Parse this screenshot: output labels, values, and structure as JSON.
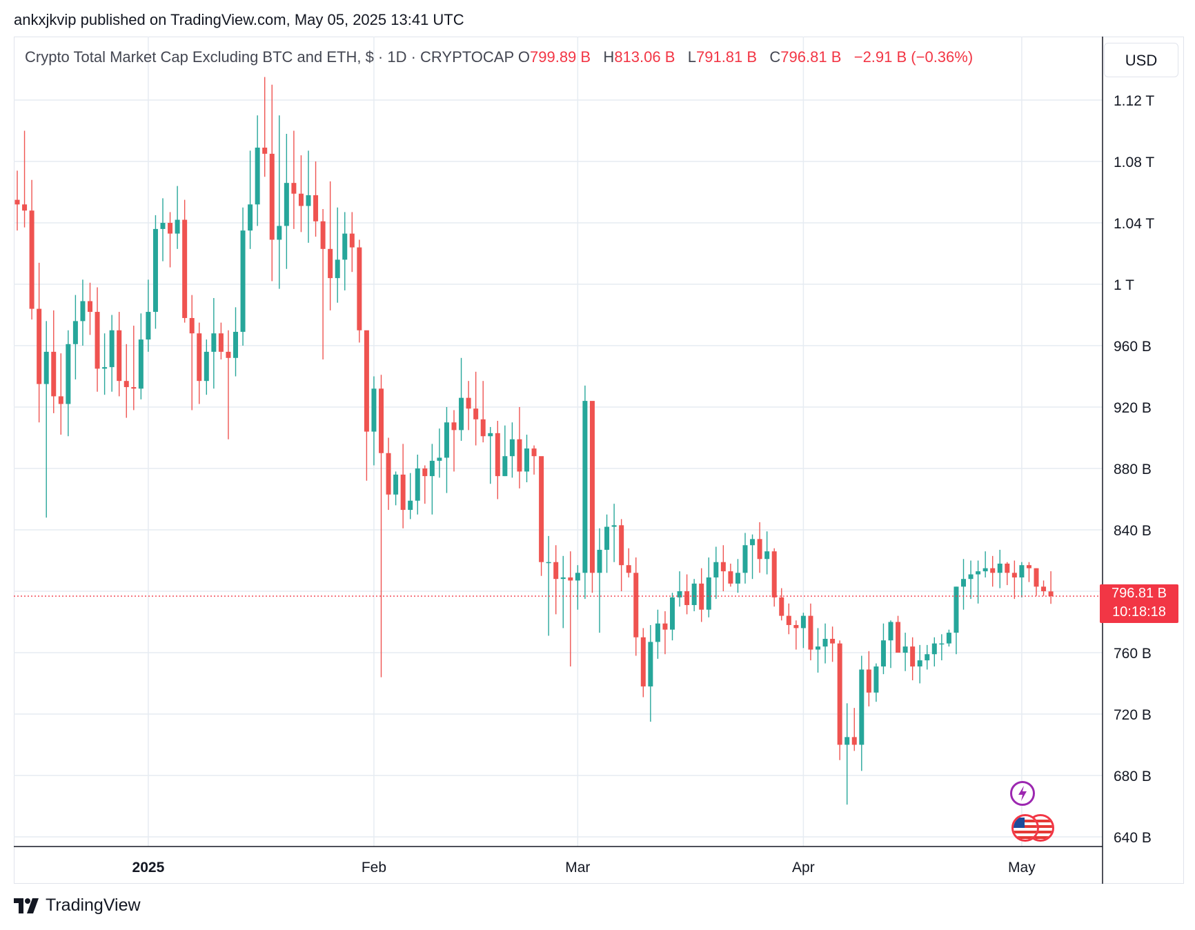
{
  "header": {
    "published_line": "ankxjkvip published on TradingView.com, May 05, 2025 13:41 UTC"
  },
  "legend": {
    "symbol": "Crypto Total Market Cap Excluding BTC and ETH, $ · 1D · CRYPTOCAP",
    "o_label": "O",
    "o_value": "799.89 B",
    "h_label": "H",
    "h_value": "813.06 B",
    "l_label": "L",
    "l_value": "791.81 B",
    "c_label": "C",
    "c_value": "796.81 B",
    "change": "−2.91 B (−0.36%)"
  },
  "controls": {
    "currency": "USD"
  },
  "price_tag": {
    "price": "796.81 B",
    "countdown": "10:18:18"
  },
  "footer": {
    "brand": "TradingView"
  },
  "colors": {
    "up": "#26a69a",
    "down": "#ef5350",
    "grid": "#e6ecf2",
    "price_line": "#f23645",
    "text": "#131722",
    "axis": "#131722"
  },
  "chart_data": {
    "type": "candlestick",
    "title": "Crypto Total Market Cap Excluding BTC and ETH, $ · 1D · CRYPTOCAP",
    "y_unit": "USD (billions)",
    "ylim": [
      635,
      1130
    ],
    "y_ticks": [
      640,
      680,
      720,
      760,
      800,
      840,
      880,
      920,
      960,
      1000,
      1040,
      1080,
      1120
    ],
    "y_tick_labels": [
      "640 B",
      "680 B",
      "720 B",
      "760 B",
      "",
      "840 B",
      "880 B",
      "920 B",
      "960 B",
      "1 T",
      "1.04 T",
      "1.08 T",
      "1.12 T"
    ],
    "x_labels": [
      {
        "label": "2025",
        "date": "2025-01-01",
        "bold": true
      },
      {
        "label": "Feb",
        "date": "2025-02-01"
      },
      {
        "label": "Mar",
        "date": "2025-03-01"
      },
      {
        "label": "Apr",
        "date": "2025-04-01"
      },
      {
        "label": "May",
        "date": "2025-05-01"
      }
    ],
    "x_range": [
      "2024-12-14",
      "2025-05-20"
    ],
    "last_price": 796.81,
    "grid": true,
    "candles": [
      {
        "d": "2024-12-14",
        "o": 1055,
        "h": 1074,
        "l": 1035,
        "c": 1052
      },
      {
        "d": "2024-12-15",
        "o": 1052,
        "h": 1100,
        "l": 1037,
        "c": 1048
      },
      {
        "d": "2024-12-16",
        "o": 1048,
        "h": 1068,
        "l": 977,
        "c": 984
      },
      {
        "d": "2024-12-17",
        "o": 984,
        "h": 1014,
        "l": 910,
        "c": 935
      },
      {
        "d": "2024-12-18",
        "o": 935,
        "h": 976,
        "l": 848,
        "c": 956
      },
      {
        "d": "2024-12-19",
        "o": 956,
        "h": 983,
        "l": 916,
        "c": 927
      },
      {
        "d": "2024-12-20",
        "o": 927,
        "h": 955,
        "l": 902,
        "c": 922
      },
      {
        "d": "2024-12-21",
        "o": 922,
        "h": 970,
        "l": 901,
        "c": 961
      },
      {
        "d": "2024-12-22",
        "o": 961,
        "h": 993,
        "l": 938,
        "c": 976
      },
      {
        "d": "2024-12-23",
        "o": 976,
        "h": 1003,
        "l": 960,
        "c": 989
      },
      {
        "d": "2024-12-24",
        "o": 989,
        "h": 1001,
        "l": 967,
        "c": 982
      },
      {
        "d": "2024-12-25",
        "o": 982,
        "h": 998,
        "l": 930,
        "c": 945
      },
      {
        "d": "2024-12-26",
        "o": 945,
        "h": 968,
        "l": 928,
        "c": 946
      },
      {
        "d": "2024-12-27",
        "o": 946,
        "h": 980,
        "l": 930,
        "c": 970
      },
      {
        "d": "2024-12-28",
        "o": 970,
        "h": 982,
        "l": 927,
        "c": 937
      },
      {
        "d": "2024-12-29",
        "o": 937,
        "h": 961,
        "l": 913,
        "c": 933
      },
      {
        "d": "2024-12-30",
        "o": 933,
        "h": 973,
        "l": 918,
        "c": 932
      },
      {
        "d": "2024-12-31",
        "o": 932,
        "h": 981,
        "l": 925,
        "c": 964
      },
      {
        "d": "2025-01-01",
        "o": 964,
        "h": 1003,
        "l": 956,
        "c": 982
      },
      {
        "d": "2025-01-02",
        "o": 982,
        "h": 1045,
        "l": 971,
        "c": 1036
      },
      {
        "d": "2025-01-03",
        "o": 1036,
        "h": 1056,
        "l": 1015,
        "c": 1040
      },
      {
        "d": "2025-01-04",
        "o": 1040,
        "h": 1047,
        "l": 1011,
        "c": 1033
      },
      {
        "d": "2025-01-05",
        "o": 1033,
        "h": 1064,
        "l": 1023,
        "c": 1042
      },
      {
        "d": "2025-01-06",
        "o": 1042,
        "h": 1055,
        "l": 975,
        "c": 978
      },
      {
        "d": "2025-01-07",
        "o": 978,
        "h": 993,
        "l": 918,
        "c": 968
      },
      {
        "d": "2025-01-08",
        "o": 968,
        "h": 975,
        "l": 922,
        "c": 937
      },
      {
        "d": "2025-01-09",
        "o": 937,
        "h": 964,
        "l": 928,
        "c": 956
      },
      {
        "d": "2025-01-10",
        "o": 956,
        "h": 991,
        "l": 932,
        "c": 968
      },
      {
        "d": "2025-01-11",
        "o": 968,
        "h": 975,
        "l": 951,
        "c": 956
      },
      {
        "d": "2025-01-12",
        "o": 956,
        "h": 970,
        "l": 899,
        "c": 952
      },
      {
        "d": "2025-01-13",
        "o": 952,
        "h": 985,
        "l": 940,
        "c": 969
      },
      {
        "d": "2025-01-14",
        "o": 969,
        "h": 1050,
        "l": 960,
        "c": 1035
      },
      {
        "d": "2025-01-15",
        "o": 1035,
        "h": 1087,
        "l": 1023,
        "c": 1052
      },
      {
        "d": "2025-01-16",
        "o": 1052,
        "h": 1110,
        "l": 1038,
        "c": 1089
      },
      {
        "d": "2025-01-17",
        "o": 1089,
        "h": 1135,
        "l": 1070,
        "c": 1085
      },
      {
        "d": "2025-01-18",
        "o": 1085,
        "h": 1130,
        "l": 1002,
        "c": 1029
      },
      {
        "d": "2025-01-19",
        "o": 1029,
        "h": 1110,
        "l": 997,
        "c": 1038
      },
      {
        "d": "2025-01-20",
        "o": 1038,
        "h": 1098,
        "l": 1010,
        "c": 1066
      },
      {
        "d": "2025-01-21",
        "o": 1066,
        "h": 1100,
        "l": 1036,
        "c": 1059
      },
      {
        "d": "2025-01-22",
        "o": 1059,
        "h": 1084,
        "l": 1034,
        "c": 1051
      },
      {
        "d": "2025-01-23",
        "o": 1051,
        "h": 1087,
        "l": 1027,
        "c": 1058
      },
      {
        "d": "2025-01-24",
        "o": 1058,
        "h": 1080,
        "l": 1031,
        "c": 1041
      },
      {
        "d": "2025-01-25",
        "o": 1041,
        "h": 1049,
        "l": 951,
        "c": 1023
      },
      {
        "d": "2025-01-26",
        "o": 1023,
        "h": 1067,
        "l": 983,
        "c": 1004
      },
      {
        "d": "2025-01-27",
        "o": 1004,
        "h": 1050,
        "l": 988,
        "c": 1016
      },
      {
        "d": "2025-01-28",
        "o": 1016,
        "h": 1047,
        "l": 996,
        "c": 1033
      },
      {
        "d": "2025-01-29",
        "o": 1033,
        "h": 1047,
        "l": 1008,
        "c": 1024
      },
      {
        "d": "2025-01-30",
        "o": 1024,
        "h": 1029,
        "l": 962,
        "c": 970
      },
      {
        "d": "2025-01-31",
        "o": 970,
        "h": 969,
        "l": 872,
        "c": 904
      },
      {
        "d": "2025-02-01",
        "o": 904,
        "h": 940,
        "l": 882,
        "c": 932
      },
      {
        "d": "2025-02-02",
        "o": 932,
        "h": 941,
        "l": 744,
        "c": 890
      },
      {
        "d": "2025-02-03",
        "o": 890,
        "h": 900,
        "l": 853,
        "c": 863
      },
      {
        "d": "2025-02-04",
        "o": 863,
        "h": 878,
        "l": 856,
        "c": 876
      },
      {
        "d": "2025-02-05",
        "o": 876,
        "h": 896,
        "l": 841,
        "c": 853
      },
      {
        "d": "2025-02-06",
        "o": 853,
        "h": 877,
        "l": 847,
        "c": 859
      },
      {
        "d": "2025-02-07",
        "o": 859,
        "h": 889,
        "l": 850,
        "c": 880
      },
      {
        "d": "2025-02-08",
        "o": 880,
        "h": 882,
        "l": 857,
        "c": 875
      },
      {
        "d": "2025-02-09",
        "o": 875,
        "h": 896,
        "l": 850,
        "c": 885
      },
      {
        "d": "2025-02-10",
        "o": 885,
        "h": 906,
        "l": 874,
        "c": 887
      },
      {
        "d": "2025-02-11",
        "o": 887,
        "h": 920,
        "l": 864,
        "c": 910
      },
      {
        "d": "2025-02-12",
        "o": 910,
        "h": 918,
        "l": 878,
        "c": 905
      },
      {
        "d": "2025-02-13",
        "o": 905,
        "h": 952,
        "l": 898,
        "c": 926
      },
      {
        "d": "2025-02-14",
        "o": 926,
        "h": 937,
        "l": 905,
        "c": 919
      },
      {
        "d": "2025-02-15",
        "o": 919,
        "h": 943,
        "l": 895,
        "c": 912
      },
      {
        "d": "2025-02-16",
        "o": 912,
        "h": 937,
        "l": 897,
        "c": 901
      },
      {
        "d": "2025-02-17",
        "o": 901,
        "h": 907,
        "l": 870,
        "c": 903
      },
      {
        "d": "2025-02-18",
        "o": 903,
        "h": 911,
        "l": 860,
        "c": 875
      },
      {
        "d": "2025-02-19",
        "o": 875,
        "h": 908,
        "l": 875,
        "c": 888
      },
      {
        "d": "2025-02-20",
        "o": 888,
        "h": 910,
        "l": 874,
        "c": 899
      },
      {
        "d": "2025-02-21",
        "o": 899,
        "h": 920,
        "l": 867,
        "c": 878
      },
      {
        "d": "2025-02-22",
        "o": 878,
        "h": 902,
        "l": 871,
        "c": 893
      },
      {
        "d": "2025-02-23",
        "o": 893,
        "h": 895,
        "l": 876,
        "c": 888
      },
      {
        "d": "2025-02-24",
        "o": 888,
        "h": 887,
        "l": 810,
        "c": 819
      },
      {
        "d": "2025-02-25",
        "o": 819,
        "h": 836,
        "l": 771,
        "c": 819
      },
      {
        "d": "2025-02-26",
        "o": 819,
        "h": 830,
        "l": 785,
        "c": 808
      },
      {
        "d": "2025-02-27",
        "o": 808,
        "h": 823,
        "l": 776,
        "c": 809
      },
      {
        "d": "2025-02-28",
        "o": 809,
        "h": 826,
        "l": 751,
        "c": 807
      },
      {
        "d": "2025-03-01",
        "o": 807,
        "h": 817,
        "l": 788,
        "c": 812
      },
      {
        "d": "2025-03-02",
        "o": 812,
        "h": 934,
        "l": 795,
        "c": 924
      },
      {
        "d": "2025-03-03",
        "o": 924,
        "h": 922,
        "l": 799,
        "c": 812
      },
      {
        "d": "2025-03-04",
        "o": 812,
        "h": 841,
        "l": 773,
        "c": 827
      },
      {
        "d": "2025-03-05",
        "o": 827,
        "h": 850,
        "l": 812,
        "c": 842
      },
      {
        "d": "2025-03-06",
        "o": 842,
        "h": 857,
        "l": 819,
        "c": 843
      },
      {
        "d": "2025-03-07",
        "o": 843,
        "h": 847,
        "l": 800,
        "c": 817
      },
      {
        "d": "2025-03-08",
        "o": 817,
        "h": 828,
        "l": 809,
        "c": 812
      },
      {
        "d": "2025-03-09",
        "o": 812,
        "h": 822,
        "l": 758,
        "c": 770
      },
      {
        "d": "2025-03-10",
        "o": 770,
        "h": 776,
        "l": 731,
        "c": 738
      },
      {
        "d": "2025-03-11",
        "o": 738,
        "h": 778,
        "l": 715,
        "c": 767
      },
      {
        "d": "2025-03-12",
        "o": 767,
        "h": 788,
        "l": 756,
        "c": 779
      },
      {
        "d": "2025-03-13",
        "o": 779,
        "h": 787,
        "l": 759,
        "c": 775
      },
      {
        "d": "2025-03-14",
        "o": 775,
        "h": 799,
        "l": 768,
        "c": 796
      },
      {
        "d": "2025-03-15",
        "o": 796,
        "h": 813,
        "l": 790,
        "c": 800
      },
      {
        "d": "2025-03-16",
        "o": 800,
        "h": 811,
        "l": 785,
        "c": 791
      },
      {
        "d": "2025-03-17",
        "o": 791,
        "h": 808,
        "l": 787,
        "c": 805
      },
      {
        "d": "2025-03-18",
        "o": 805,
        "h": 815,
        "l": 780,
        "c": 788
      },
      {
        "d": "2025-03-19",
        "o": 788,
        "h": 822,
        "l": 783,
        "c": 809
      },
      {
        "d": "2025-03-20",
        "o": 809,
        "h": 829,
        "l": 795,
        "c": 819
      },
      {
        "d": "2025-03-21",
        "o": 819,
        "h": 830,
        "l": 800,
        "c": 813
      },
      {
        "d": "2025-03-22",
        "o": 813,
        "h": 818,
        "l": 803,
        "c": 805
      },
      {
        "d": "2025-03-23",
        "o": 805,
        "h": 821,
        "l": 799,
        "c": 812
      },
      {
        "d": "2025-03-24",
        "o": 812,
        "h": 838,
        "l": 805,
        "c": 830
      },
      {
        "d": "2025-03-25",
        "o": 830,
        "h": 837,
        "l": 808,
        "c": 834
      },
      {
        "d": "2025-03-26",
        "o": 834,
        "h": 845,
        "l": 812,
        "c": 821
      },
      {
        "d": "2025-03-27",
        "o": 821,
        "h": 839,
        "l": 811,
        "c": 826
      },
      {
        "d": "2025-03-28",
        "o": 826,
        "h": 828,
        "l": 790,
        "c": 796
      },
      {
        "d": "2025-03-29",
        "o": 796,
        "h": 802,
        "l": 781,
        "c": 784
      },
      {
        "d": "2025-03-30",
        "o": 784,
        "h": 792,
        "l": 772,
        "c": 778
      },
      {
        "d": "2025-03-31",
        "o": 778,
        "h": 781,
        "l": 762,
        "c": 776
      },
      {
        "d": "2025-04-01",
        "o": 776,
        "h": 786,
        "l": 763,
        "c": 784
      },
      {
        "d": "2025-04-02",
        "o": 784,
        "h": 792,
        "l": 755,
        "c": 762
      },
      {
        "d": "2025-04-03",
        "o": 762,
        "h": 776,
        "l": 747,
        "c": 764
      },
      {
        "d": "2025-04-04",
        "o": 764,
        "h": 779,
        "l": 753,
        "c": 769
      },
      {
        "d": "2025-04-05",
        "o": 769,
        "h": 777,
        "l": 754,
        "c": 766
      },
      {
        "d": "2025-04-06",
        "o": 766,
        "h": 768,
        "l": 690,
        "c": 700
      },
      {
        "d": "2025-04-07",
        "o": 700,
        "h": 727,
        "l": 661,
        "c": 705
      },
      {
        "d": "2025-04-08",
        "o": 705,
        "h": 724,
        "l": 696,
        "c": 700
      },
      {
        "d": "2025-04-09",
        "o": 700,
        "h": 758,
        "l": 683,
        "c": 749
      },
      {
        "d": "2025-04-10",
        "o": 749,
        "h": 761,
        "l": 725,
        "c": 734
      },
      {
        "d": "2025-04-11",
        "o": 734,
        "h": 753,
        "l": 728,
        "c": 751
      },
      {
        "d": "2025-04-12",
        "o": 751,
        "h": 779,
        "l": 746,
        "c": 768
      },
      {
        "d": "2025-04-13",
        "o": 768,
        "h": 781,
        "l": 750,
        "c": 780
      },
      {
        "d": "2025-04-14",
        "o": 780,
        "h": 784,
        "l": 760,
        "c": 760
      },
      {
        "d": "2025-04-15",
        "o": 760,
        "h": 773,
        "l": 748,
        "c": 764
      },
      {
        "d": "2025-04-16",
        "o": 764,
        "h": 770,
        "l": 742,
        "c": 751
      },
      {
        "d": "2025-04-17",
        "o": 751,
        "h": 765,
        "l": 740,
        "c": 755
      },
      {
        "d": "2025-04-18",
        "o": 755,
        "h": 765,
        "l": 749,
        "c": 759
      },
      {
        "d": "2025-04-19",
        "o": 759,
        "h": 770,
        "l": 751,
        "c": 766
      },
      {
        "d": "2025-04-20",
        "o": 766,
        "h": 772,
        "l": 755,
        "c": 766
      },
      {
        "d": "2025-04-21",
        "o": 766,
        "h": 775,
        "l": 764,
        "c": 773
      },
      {
        "d": "2025-04-22",
        "o": 773,
        "h": 803,
        "l": 759,
        "c": 803
      },
      {
        "d": "2025-04-23",
        "o": 803,
        "h": 821,
        "l": 788,
        "c": 808
      },
      {
        "d": "2025-04-24",
        "o": 808,
        "h": 820,
        "l": 795,
        "c": 811
      },
      {
        "d": "2025-04-25",
        "o": 811,
        "h": 820,
        "l": 792,
        "c": 813
      },
      {
        "d": "2025-04-26",
        "o": 813,
        "h": 826,
        "l": 809,
        "c": 815
      },
      {
        "d": "2025-04-27",
        "o": 815,
        "h": 823,
        "l": 803,
        "c": 812
      },
      {
        "d": "2025-04-28",
        "o": 812,
        "h": 827,
        "l": 802,
        "c": 818
      },
      {
        "d": "2025-04-29",
        "o": 818,
        "h": 819,
        "l": 804,
        "c": 812
      },
      {
        "d": "2025-04-30",
        "o": 812,
        "h": 820,
        "l": 795,
        "c": 809
      },
      {
        "d": "2025-05-01",
        "o": 809,
        "h": 819,
        "l": 796,
        "c": 817
      },
      {
        "d": "2025-05-02",
        "o": 817,
        "h": 819,
        "l": 806,
        "c": 815
      },
      {
        "d": "2025-05-03",
        "o": 815,
        "h": 815,
        "l": 797,
        "c": 803
      },
      {
        "d": "2025-05-04",
        "o": 803,
        "h": 807,
        "l": 797,
        "c": 800
      },
      {
        "d": "2025-05-05",
        "o": 799.89,
        "h": 813.06,
        "l": 791.81,
        "c": 796.81
      }
    ]
  }
}
